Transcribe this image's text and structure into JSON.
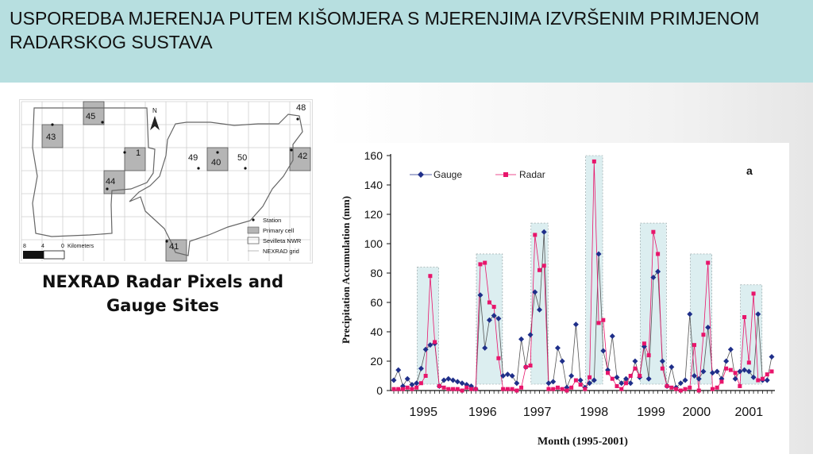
{
  "header": {
    "title": "USPOREDBA MJERENJA PUTEM KIŠOMJERA S MJERENJIMA IZVRŠENIM PRIMJENOM RADARSKOG SUSTAVA"
  },
  "map": {
    "cells": [
      "45",
      "43",
      "1",
      "44",
      "40",
      "42",
      "41"
    ],
    "stations": [
      "48",
      "49",
      "50"
    ],
    "north": "N",
    "scale_labels": [
      "8",
      "4",
      "0",
      "Kilometers"
    ],
    "legend": [
      "Station",
      "Primary cell",
      "Sevilleta NWR",
      "NEXRAD grid"
    ]
  },
  "caption": "NEXRAD Radar Pixels and Gauge Sites",
  "chart_data": {
    "type": "line",
    "panel_label": "a",
    "xlabel": "Month (1995-2001)",
    "ylabel": "Precipitation Accumulation (mm)",
    "ylim": [
      0,
      160
    ],
    "yticks": [
      0,
      20,
      40,
      60,
      80,
      100,
      120,
      140,
      160
    ],
    "year_labels": [
      "1995",
      "1996",
      "1997",
      "1998",
      "1999",
      "2000",
      "2001"
    ],
    "legend": [
      "Gauge",
      "Radar"
    ],
    "colors": {
      "Gauge": "#1f2f8a",
      "Radar": "#e8156b",
      "highlight": "#dceef0"
    },
    "series": [
      {
        "name": "Gauge",
        "values": [
          7,
          14,
          3,
          8,
          4,
          5,
          15,
          28,
          31,
          32,
          3,
          7,
          8,
          7,
          6,
          5,
          4,
          3,
          1,
          65,
          29,
          48,
          51,
          49,
          10,
          11,
          10,
          5,
          35,
          16,
          38,
          67,
          55,
          108,
          5,
          6,
          29,
          20,
          2,
          10,
          45,
          7,
          2,
          5,
          7,
          93,
          27,
          14,
          37,
          9,
          5,
          8,
          5,
          20,
          9,
          30,
          8,
          77,
          81,
          20,
          3,
          16,
          2,
          5,
          7,
          52,
          10,
          8,
          13,
          43,
          12,
          13,
          8,
          20,
          28,
          8,
          13,
          14,
          13,
          9,
          52,
          7,
          7,
          23
        ]
      },
      {
        "name": "Radar",
        "values": [
          1,
          1,
          1,
          2,
          1,
          2,
          5,
          10,
          78,
          33,
          3,
          2,
          1,
          1,
          1,
          0,
          2,
          1,
          1,
          86,
          87,
          60,
          57,
          22,
          1,
          1,
          1,
          0,
          2,
          16,
          17,
          106,
          82,
          85,
          1,
          1,
          2,
          1,
          0,
          2,
          7,
          4,
          1,
          9,
          156,
          46,
          48,
          12,
          8,
          3,
          1,
          5,
          10,
          15,
          10,
          32,
          24,
          108,
          93,
          15,
          3,
          2,
          1,
          0,
          1,
          2,
          31,
          0,
          38,
          87,
          1,
          2,
          6,
          15,
          14,
          12,
          3,
          50,
          19,
          66,
          7,
          8,
          11,
          13
        ]
      }
    ]
  }
}
